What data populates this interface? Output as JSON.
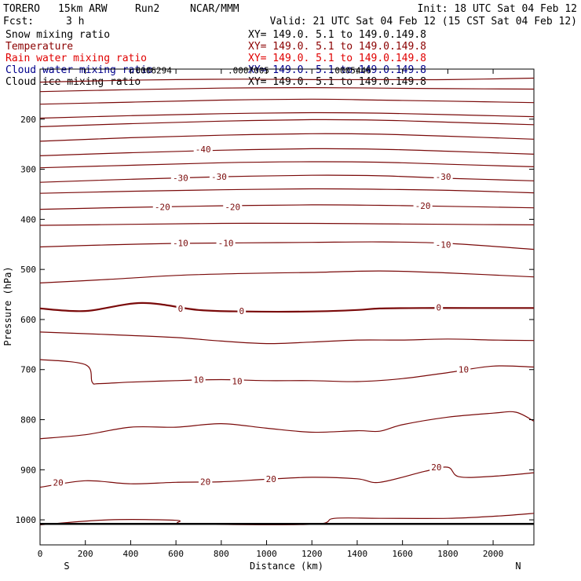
{
  "header": {
    "model": "TORERO",
    "resolution": "15km ARW",
    "run": "Run2",
    "org": "NCAR/MMM",
    "init": "Init: 18 UTC Sat 04 Feb 12",
    "fcst_label": "Fcst:",
    "fcst_value": "3 h",
    "valid": "Valid: 21 UTC Sat 04 Feb 12 (15 CST Sat 04 Feb 12)"
  },
  "fields": [
    {
      "name": "Snow mixing ratio",
      "xy": "XY= 149.0.  5.1 to 149.0.149.8",
      "color": "#000000"
    },
    {
      "name": "Temperature",
      "xy": "XY= 149.0.  5.1 to 149.0.149.8",
      "color": "#8b0000"
    },
    {
      "name": "Rain water mixing ratio",
      "xy": "XY= 149.0.  5.1 to 149.0.149.8",
      "color": "#e00000"
    },
    {
      "name": "Cloud water mixing ratio",
      "xy": "XY= 149.0.  5.1 to 149.0.149.8",
      "color": "#00008b"
    },
    {
      "name": "Cloud ice mixing ratio",
      "xy": "XY= 149.0.  5.1 to 149.0.149.8",
      "color": "#000000"
    }
  ],
  "chart_data": {
    "type": "line",
    "subtype": "cross-section contour plot",
    "xlabel": "Distance (km)",
    "ylabel": "Pressure (hPa)",
    "xlim": [
      0,
      2180
    ],
    "ylim": [
      1050,
      100
    ],
    "x_ticks": [
      0,
      200,
      400,
      600,
      800,
      1000,
      1200,
      1400,
      1600,
      1800,
      2000
    ],
    "y_ticks": [
      200,
      300,
      400,
      500,
      600,
      700,
      800,
      900,
      1000
    ],
    "left_label": "S",
    "right_label": "N",
    "contour_color": "#7a0a0a",
    "cloud_ice_labels": [
      {
        "text": ".0006294",
        "x": 490,
        "p": 112
      },
      {
        "text": ".0007005",
        "x": 920,
        "p": 112
      },
      {
        "text": ".0005446",
        "x": 1370,
        "p": 112
      }
    ],
    "temperature_contours": [
      {
        "value": -70,
        "x": [
          0,
          300,
          600,
          900,
          1200,
          1500,
          1800,
          2180
        ],
        "p": [
          126,
          123,
          121,
          120,
          121,
          121,
          121,
          118
        ]
      },
      {
        "value": -65,
        "x": [
          0,
          400,
          800,
          1200,
          1500,
          1800,
          2180
        ],
        "p": [
          145,
          141,
          138,
          137,
          138,
          139,
          140
        ]
      },
      {
        "value": -60,
        "x": [
          0,
          400,
          800,
          1200,
          1500,
          1800,
          2180
        ],
        "p": [
          170,
          166,
          162,
          160,
          162,
          164,
          167
        ]
      },
      {
        "value": -55,
        "x": [
          0,
          400,
          800,
          1200,
          1500,
          1800,
          2180
        ],
        "p": [
          198,
          193,
          189,
          187,
          188,
          191,
          195
        ]
      },
      {
        "value": -50,
        "x": [
          0,
          400,
          800,
          1200,
          1500,
          1800,
          2180
        ],
        "p": [
          244,
          237,
          232,
          229,
          230,
          234,
          240
        ]
      },
      {
        "value": -45,
        "x": [
          0,
          400,
          800,
          1200,
          1500,
          1800,
          2180
        ],
        "p": [
          215,
          209,
          204,
          201,
          202,
          206,
          211
        ]
      },
      {
        "value": -40,
        "x": [
          0,
          400,
          800,
          1200,
          1500,
          1800,
          2180
        ],
        "p": [
          273,
          267,
          262,
          259,
          260,
          264,
          270
        ]
      },
      {
        "value": -35,
        "x": [
          0,
          400,
          800,
          1200,
          1500,
          1800,
          2180
        ],
        "p": [
          297,
          292,
          287,
          285,
          286,
          290,
          295
        ]
      },
      {
        "value": -30,
        "x": [
          0,
          400,
          800,
          1200,
          1500,
          1800,
          2180
        ],
        "p": [
          326,
          320,
          315,
          312,
          313,
          318,
          323
        ]
      },
      {
        "value": -25,
        "x": [
          0,
          400,
          800,
          1200,
          1500,
          1800,
          2180
        ],
        "p": [
          348,
          344,
          341,
          339,
          340,
          342,
          347
        ]
      },
      {
        "value": -20,
        "x": [
          0,
          400,
          800,
          1200,
          1500,
          1800,
          2180
        ],
        "p": [
          380,
          376,
          373,
          371,
          372,
          374,
          377
        ]
      },
      {
        "value": -15,
        "x": [
          0,
          400,
          800,
          1200,
          1500,
          1800,
          2180
        ],
        "p": [
          412,
          410,
          408,
          408,
          409,
          410,
          411
        ]
      },
      {
        "value": -10,
        "x": [
          0,
          300,
          600,
          900,
          1200,
          1500,
          1800,
          2180
        ],
        "p": [
          455,
          451,
          448,
          447,
          446,
          445,
          448,
          460
        ]
      },
      {
        "value": -5,
        "x": [
          0,
          300,
          600,
          900,
          1200,
          1500,
          1800,
          2180
        ],
        "p": [
          527,
          520,
          512,
          508,
          506,
          503,
          507,
          515
        ]
      },
      {
        "value": 0,
        "x": [
          0,
          200,
          450,
          700,
          900,
          1200,
          1400,
          1500,
          1700,
          1900,
          2180
        ],
        "p": [
          578,
          583,
          567,
          581,
          584,
          584,
          581,
          578,
          577,
          577,
          577
        ]
      },
      {
        "value": 5,
        "x": [
          0,
          300,
          600,
          800,
          1000,
          1200,
          1400,
          1600,
          1800,
          2000,
          2180
        ],
        "p": [
          625,
          630,
          636,
          643,
          648,
          645,
          641,
          641,
          639,
          641,
          642
        ]
      },
      {
        "value": 10,
        "x": [
          0,
          200,
          230,
          260,
          400,
          600,
          800,
          1000,
          1200,
          1400,
          1600,
          1800,
          2000,
          2180
        ],
        "p": [
          680,
          690,
          725,
          728,
          725,
          722,
          720,
          722,
          722,
          724,
          718,
          706,
          693,
          695
        ]
      },
      {
        "value": 15,
        "x": [
          0,
          200,
          400,
          600,
          800,
          1000,
          1200,
          1400,
          1500,
          1600,
          1800,
          2000,
          2100,
          2180
        ],
        "p": [
          838,
          830,
          815,
          815,
          808,
          817,
          825,
          822,
          823,
          810,
          795,
          787,
          785,
          803
        ]
      },
      {
        "value": 20,
        "x": [
          0,
          200,
          400,
          600,
          800,
          1000,
          1200,
          1400,
          1500,
          1700,
          1800,
          1850,
          2000,
          2180
        ],
        "p": [
          935,
          922,
          928,
          925,
          924,
          919,
          915,
          918,
          925,
          903,
          895,
          914,
          913,
          906
        ]
      },
      {
        "value": 25,
        "x": [
          0,
          300,
          600,
          650,
          1200,
          1300,
          1500,
          1800,
          2000,
          2180
        ],
        "p": [
          1010,
          1000,
          1001,
          1008,
          1009,
          997,
          997,
          997,
          993,
          987
        ]
      }
    ],
    "labels": [
      {
        "text": "-40",
        "x": 720,
        "p": 260
      },
      {
        "text": "-30",
        "x": 620,
        "p": 317
      },
      {
        "text": "-30",
        "x": 790,
        "p": 315
      },
      {
        "text": "-30",
        "x": 1780,
        "p": 315
      },
      {
        "text": "-20",
        "x": 540,
        "p": 375
      },
      {
        "text": "-20",
        "x": 850,
        "p": 375
      },
      {
        "text": "-20",
        "x": 1690,
        "p": 373
      },
      {
        "text": "-10",
        "x": 620,
        "p": 447
      },
      {
        "text": "-10",
        "x": 820,
        "p": 447
      },
      {
        "text": "-10",
        "x": 1780,
        "p": 450
      },
      {
        "text": "0",
        "x": 620,
        "p": 578
      },
      {
        "text": "0",
        "x": 890,
        "p": 583
      },
      {
        "text": "0",
        "x": 1760,
        "p": 576
      },
      {
        "text": "10",
        "x": 700,
        "p": 720
      },
      {
        "text": "10",
        "x": 870,
        "p": 723
      },
      {
        "text": "10",
        "x": 1870,
        "p": 700
      },
      {
        "text": "20",
        "x": 80,
        "p": 925
      },
      {
        "text": "20",
        "x": 730,
        "p": 924
      },
      {
        "text": "20",
        "x": 1020,
        "p": 918
      },
      {
        "text": "20",
        "x": 1750,
        "p": 895
      }
    ]
  }
}
